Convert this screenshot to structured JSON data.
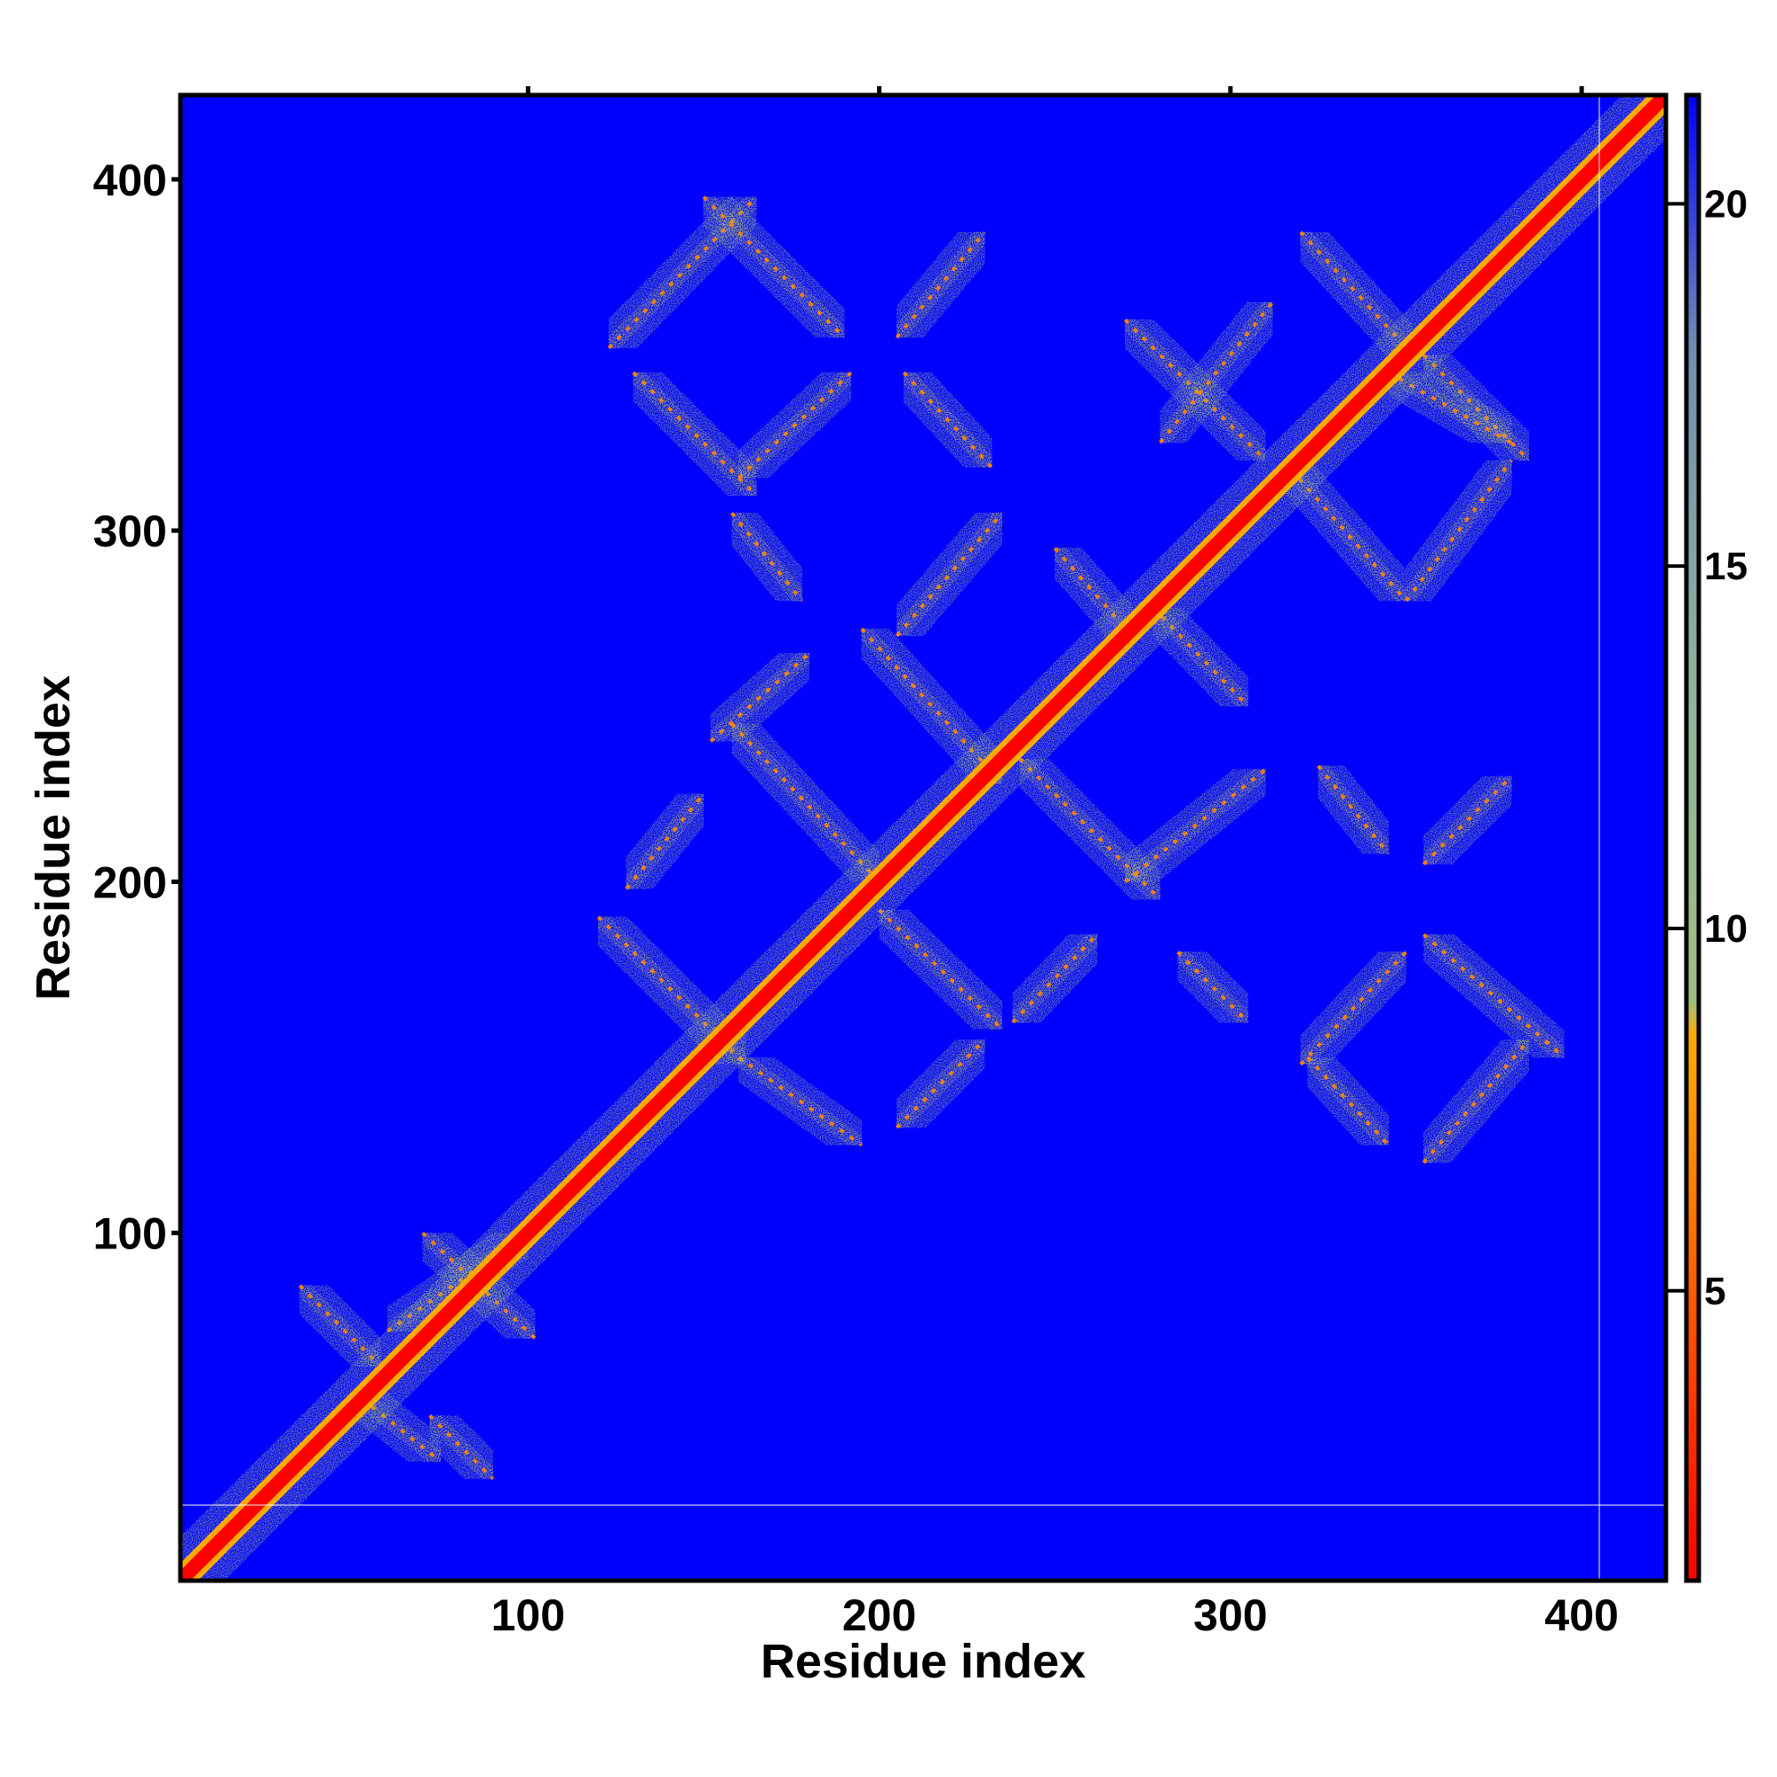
{
  "chart_data": {
    "type": "heatmap",
    "title": "",
    "xlabel": "Residue index",
    "ylabel": "Residue index",
    "xlim": [
      1,
      424
    ],
    "ylim": [
      1,
      424
    ],
    "x_ticks": [
      100,
      200,
      300,
      400
    ],
    "y_ticks": [
      100,
      200,
      300,
      400
    ],
    "colorbar": {
      "range": [
        1,
        21.5
      ],
      "ticks": [
        5,
        10,
        15,
        20
      ],
      "stops": [
        {
          "value": 1,
          "color": "#ff0000"
        },
        {
          "value": 4,
          "color": "#ff4400"
        },
        {
          "value": 7,
          "color": "#ff8c00"
        },
        {
          "value": 8.5,
          "color": "#ffaa00"
        },
        {
          "value": 9,
          "color": "#9fbf80"
        },
        {
          "value": 13,
          "color": "#8fb69a"
        },
        {
          "value": 18,
          "color": "#6f8fb0"
        },
        {
          "value": 21.5,
          "color": "#0000ff"
        }
      ]
    },
    "background_color": "#0000ff",
    "diagonal": {
      "from": 1,
      "to": 424,
      "core_color": "#ff0000",
      "band_color": "#9fbf80"
    },
    "contact_bands": [
      {
        "x": [
          123,
          165
        ],
        "y": [
          352,
          395
        ],
        "orientation": "parallel"
      },
      {
        "x": [
          150,
          190
        ],
        "y": [
          395,
          355
        ],
        "orientation": "anti"
      },
      {
        "x": [
          130,
          165
        ],
        "y": [
          345,
          310
        ],
        "orientation": "anti"
      },
      {
        "x": [
          160,
          192
        ],
        "y": [
          315,
          345
        ],
        "orientation": "parallel"
      },
      {
        "x": [
          205,
          230
        ],
        "y": [
          355,
          385
        ],
        "orientation": "parallel"
      },
      {
        "x": [
          207,
          232
        ],
        "y": [
          345,
          318
        ],
        "orientation": "anti"
      },
      {
        "x": [
          205,
          235
        ],
        "y": [
          270,
          305
        ],
        "orientation": "parallel"
      },
      {
        "x": [
          158,
          178
        ],
        "y": [
          305,
          280
        ],
        "orientation": "anti"
      },
      {
        "x": [
          195,
          235
        ],
        "y": [
          272,
          228
        ],
        "orientation": "anti"
      },
      {
        "x": [
          152,
          180
        ],
        "y": [
          240,
          265
        ],
        "orientation": "parallel"
      },
      {
        "x": [
          158,
          200
        ],
        "y": [
          245,
          200
        ],
        "orientation": "anti"
      },
      {
        "x": [
          128,
          150
        ],
        "y": [
          198,
          225
        ],
        "orientation": "parallel"
      },
      {
        "x": [
          120,
          162
        ],
        "y": [
          190,
          148
        ],
        "orientation": "anti"
      },
      {
        "x": [
          160,
          195
        ],
        "y": [
          150,
          125
        ],
        "orientation": "anti"
      },
      {
        "x": [
          200,
          235
        ],
        "y": [
          192,
          158
        ],
        "orientation": "anti"
      },
      {
        "x": [
          238,
          262
        ],
        "y": [
          160,
          185
        ],
        "orientation": "parallel"
      },
      {
        "x": [
          205,
          230
        ],
        "y": [
          130,
          155
        ],
        "orientation": "parallel"
      },
      {
        "x": [
          240,
          280
        ],
        "y": [
          235,
          195
        ],
        "orientation": "anti"
      },
      {
        "x": [
          270,
          310
        ],
        "y": [
          200,
          232
        ],
        "orientation": "parallel"
      },
      {
        "x": [
          325,
          345
        ],
        "y": [
          233,
          208
        ],
        "orientation": "anti"
      },
      {
        "x": [
          355,
          380
        ],
        "y": [
          205,
          230
        ],
        "orientation": "parallel"
      },
      {
        "x": [
          250,
          272
        ],
        "y": [
          295,
          270
        ],
        "orientation": "anti"
      },
      {
        "x": [
          278,
          305
        ],
        "y": [
          278,
          250
        ],
        "orientation": "anti"
      },
      {
        "x": [
          270,
          310
        ],
        "y": [
          360,
          320
        ],
        "orientation": "anti"
      },
      {
        "x": [
          280,
          312
        ],
        "y": [
          325,
          365
        ],
        "orientation": "parallel"
      },
      {
        "x": [
          320,
          352
        ],
        "y": [
          385,
          350
        ],
        "orientation": "anti"
      },
      {
        "x": [
          355,
          385
        ],
        "y": [
          350,
          320
        ],
        "orientation": "anti"
      },
      {
        "x": [
          315,
          350
        ],
        "y": [
          320,
          280
        ],
        "orientation": "anti"
      },
      {
        "x": [
          350,
          380
        ],
        "y": [
          280,
          320
        ],
        "orientation": "parallel"
      },
      {
        "x": [
          345,
          380
        ],
        "y": [
          345,
          325
        ],
        "orientation": "anti"
      },
      {
        "x": [
          355,
          395
        ],
        "y": [
          185,
          150
        ],
        "orientation": "anti"
      },
      {
        "x": [
          355,
          385
        ],
        "y": [
          120,
          155
        ],
        "orientation": "parallel"
      },
      {
        "x": [
          320,
          350
        ],
        "y": [
          148,
          180
        ],
        "orientation": "parallel"
      },
      {
        "x": [
          322,
          345
        ],
        "y": [
          150,
          125
        ],
        "orientation": "anti"
      },
      {
        "x": [
          285,
          305
        ],
        "y": [
          180,
          160
        ],
        "orientation": "anti"
      },
      {
        "x": [
          35,
          58
        ],
        "y": [
          85,
          62
        ],
        "orientation": "anti"
      },
      {
        "x": [
          60,
          100
        ],
        "y": [
          72,
          100
        ],
        "orientation": "parallel"
      },
      {
        "x": [
          70,
          102
        ],
        "y": [
          100,
          70
        ],
        "orientation": "anti"
      },
      {
        "x": [
          72,
          90
        ],
        "y": [
          48,
          30
        ],
        "orientation": "anti"
      },
      {
        "x": [
          50,
          75
        ],
        "y": [
          55,
          35
        ],
        "orientation": "anti"
      }
    ]
  }
}
